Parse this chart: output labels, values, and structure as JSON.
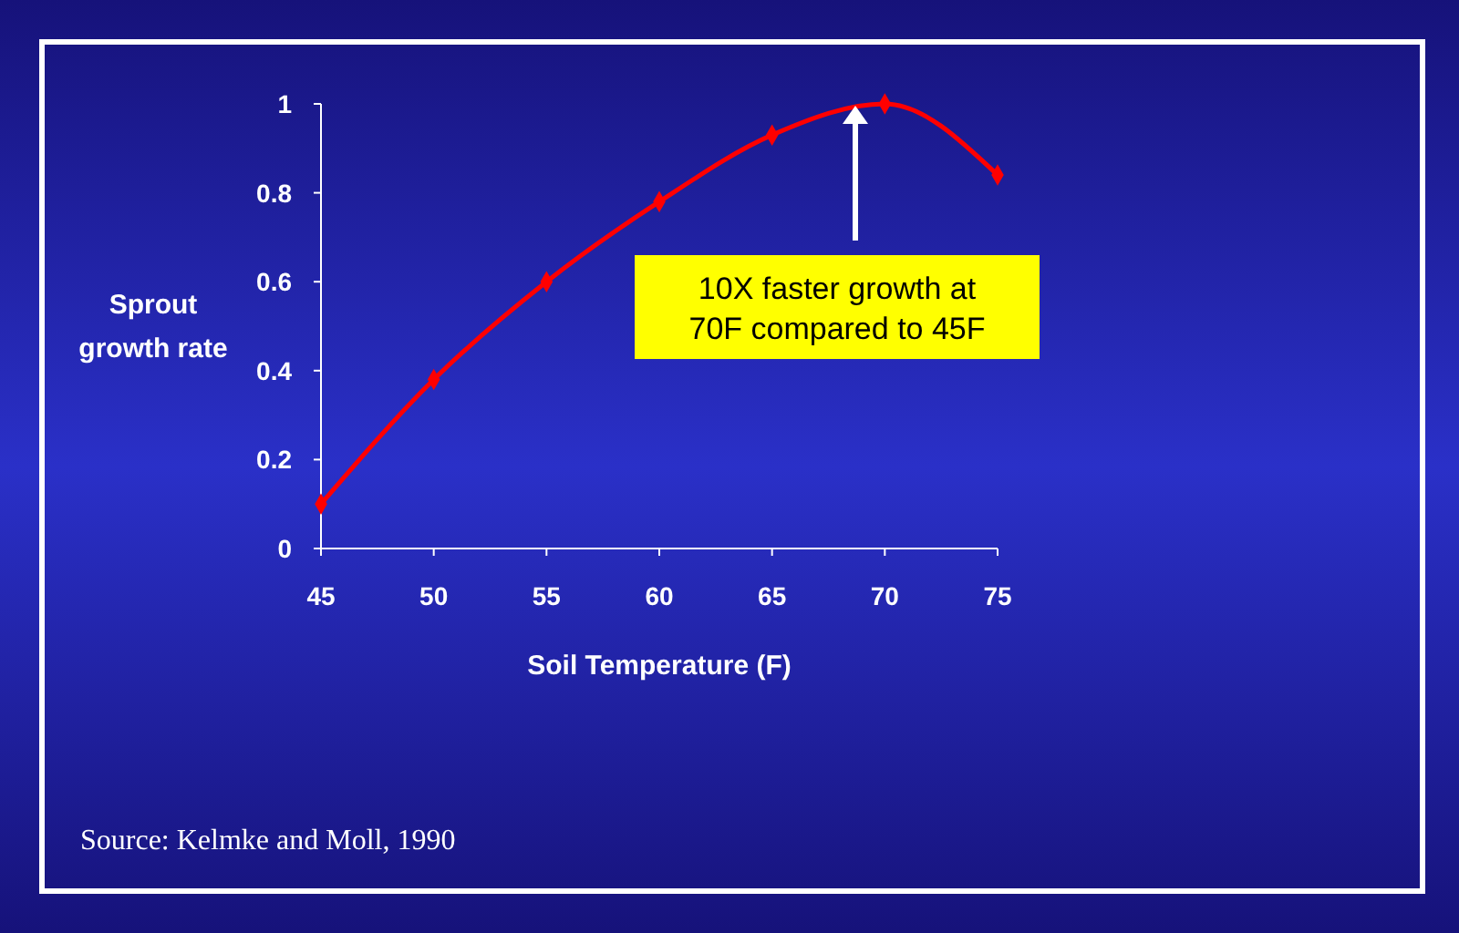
{
  "chart_data": {
    "type": "line",
    "xlabel": "Soil Temperature (F)",
    "ylabel": "Sprout growth rate",
    "x": [
      45,
      50,
      55,
      60,
      65,
      70,
      75
    ],
    "series": [
      {
        "color": "#ff0000",
        "values": [
          0.1,
          0.38,
          0.6,
          0.78,
          0.93,
          1.0,
          0.84
        ]
      }
    ],
    "xlim": [
      45,
      75
    ],
    "xticks": [
      45,
      50,
      55,
      60,
      65,
      70,
      75
    ],
    "ylim": [
      0,
      1
    ],
    "yticks": [
      0,
      0.2,
      0.4,
      0.6,
      0.8,
      1
    ],
    "marker": "diamond",
    "line_style": "solid",
    "grid": false,
    "annotations": [
      "10X faster growth at 70F compared to 45F",
      "Source: Kelmke and Moll, 1990"
    ]
  }
}
